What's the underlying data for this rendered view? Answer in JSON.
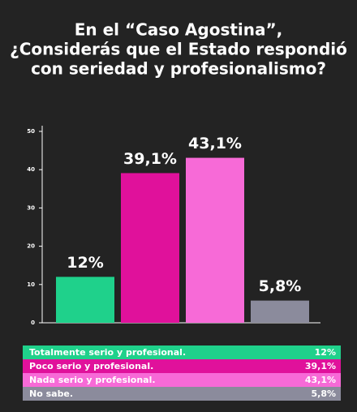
{
  "chart_data": {
    "type": "bar",
    "title": [
      "En el “Caso Agostina”,",
      "¿Considerás que el Estado respondió",
      "con seriedad y profesionalismo?"
    ],
    "categories": [
      "Totalmente serio y profesional.",
      "Poco serio y profesional.",
      "Nada serio y profesional.",
      "No sabe."
    ],
    "values": [
      12,
      39.1,
      43.1,
      5.8
    ],
    "value_labels": [
      "12%",
      "39,1%",
      "43,1%",
      "5,8%"
    ],
    "colors": [
      "#1fd18b",
      "#e0119b",
      "#f76ad7",
      "#8b8b9c"
    ],
    "ylim": [
      0,
      50
    ],
    "yticks": [
      0,
      10,
      20,
      30,
      40,
      50
    ]
  }
}
